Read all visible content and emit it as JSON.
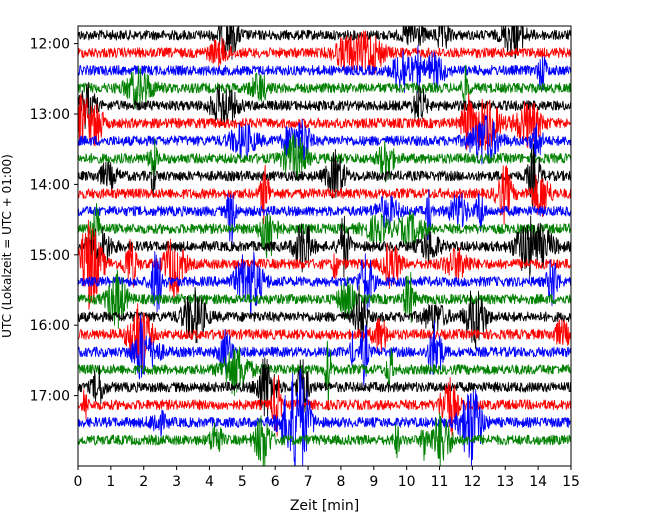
{
  "chart_data": {
    "type": "line",
    "title": "",
    "xlabel": "Zeit  [min]",
    "ylabel": "UTC (Lokalzeit = UTC + 01:00)",
    "x_range": [
      0,
      15
    ],
    "x_ticks": [
      0,
      1,
      2,
      3,
      4,
      5,
      6,
      7,
      8,
      9,
      10,
      11,
      12,
      13,
      14,
      15
    ],
    "y_range_utc": [
      "11:45",
      "18:00"
    ],
    "y_ticks": [
      "12:00",
      "13:00",
      "14:00",
      "15:00",
      "16:00",
      "17:00"
    ],
    "trace_interval_minutes": 15,
    "trace_start_utc": "11:45",
    "trace_count": 24,
    "color_cycle": [
      "#000000",
      "#ff0000",
      "#0000ff",
      "#008000"
    ],
    "traces": [
      {
        "start_utc": "11:45",
        "color": "#000000"
      },
      {
        "start_utc": "12:00",
        "color": "#ff0000"
      },
      {
        "start_utc": "12:15",
        "color": "#0000ff"
      },
      {
        "start_utc": "12:30",
        "color": "#008000"
      },
      {
        "start_utc": "12:45",
        "color": "#000000"
      },
      {
        "start_utc": "13:00",
        "color": "#ff0000"
      },
      {
        "start_utc": "13:15",
        "color": "#0000ff"
      },
      {
        "start_utc": "13:30",
        "color": "#008000"
      },
      {
        "start_utc": "13:45",
        "color": "#000000"
      },
      {
        "start_utc": "14:00",
        "color": "#ff0000"
      },
      {
        "start_utc": "14:15",
        "color": "#0000ff"
      },
      {
        "start_utc": "14:30",
        "color": "#008000"
      },
      {
        "start_utc": "14:45",
        "color": "#000000"
      },
      {
        "start_utc": "15:00",
        "color": "#ff0000"
      },
      {
        "start_utc": "15:15",
        "color": "#0000ff"
      },
      {
        "start_utc": "15:30",
        "color": "#008000"
      },
      {
        "start_utc": "15:45",
        "color": "#000000"
      },
      {
        "start_utc": "16:00",
        "color": "#ff0000"
      },
      {
        "start_utc": "16:15",
        "color": "#0000ff"
      },
      {
        "start_utc": "16:30",
        "color": "#008000"
      },
      {
        "start_utc": "16:45",
        "color": "#000000"
      },
      {
        "start_utc": "17:00",
        "color": "#ff0000"
      },
      {
        "start_utc": "17:15",
        "color": "#0000ff"
      },
      {
        "start_utc": "17:30",
        "color": "#008000"
      }
    ],
    "grid": false,
    "legend": "none"
  }
}
